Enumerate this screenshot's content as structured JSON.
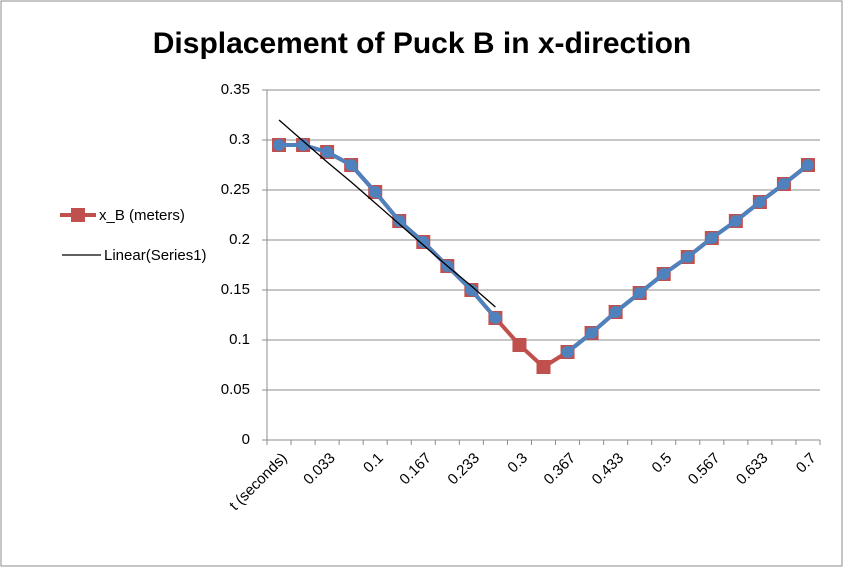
{
  "chart_data": {
    "type": "line",
    "title": "Displacement of Puck B in x-direction",
    "categories": [
      "t (seconds)",
      null,
      "0.033",
      null,
      "0.1",
      null,
      "0.167",
      null,
      "0.233",
      null,
      "0.3",
      null,
      "0.367",
      null,
      "0.433",
      null,
      "0.5",
      null,
      "0.567",
      null,
      "0.633",
      null,
      "0.7"
    ],
    "series": [
      {
        "name": "x_B (meters)",
        "color": "#c0504d",
        "marker": "square",
        "values": [
          0.295,
          0.295,
          0.288,
          0.275,
          0.248,
          0.219,
          0.198,
          0.174,
          0.15,
          0.122,
          0.095,
          0.073,
          0.088,
          0.107,
          0.128,
          0.147,
          0.166,
          0.183,
          0.202,
          0.219,
          0.238,
          0.256,
          0.275
        ]
      },
      {
        "color": "#4f81bd",
        "marker": "circle",
        "values": [
          0.295,
          0.295,
          0.288,
          0.275,
          0.248,
          0.219,
          0.198,
          0.174,
          0.15,
          0.122,
          null,
          null,
          0.088,
          0.107,
          0.128,
          0.147,
          0.166,
          0.183,
          0.202,
          0.219,
          0.238,
          0.256,
          0.275
        ]
      }
    ],
    "trendline": {
      "name": "Linear(Series1)",
      "color": "#000000",
      "values": [
        0.32,
        0.299,
        0.278,
        0.258,
        0.237,
        0.216,
        0.195,
        0.174,
        0.154,
        0.133,
        null,
        null,
        null,
        null,
        null,
        null,
        null,
        null,
        null,
        null,
        null,
        null,
        null
      ]
    },
    "ylim": [
      0,
      0.35
    ],
    "yticks": [
      0,
      0.05,
      0.1,
      0.15,
      0.2,
      0.25,
      0.3,
      0.35
    ],
    "grid": true,
    "legend": "left"
  }
}
